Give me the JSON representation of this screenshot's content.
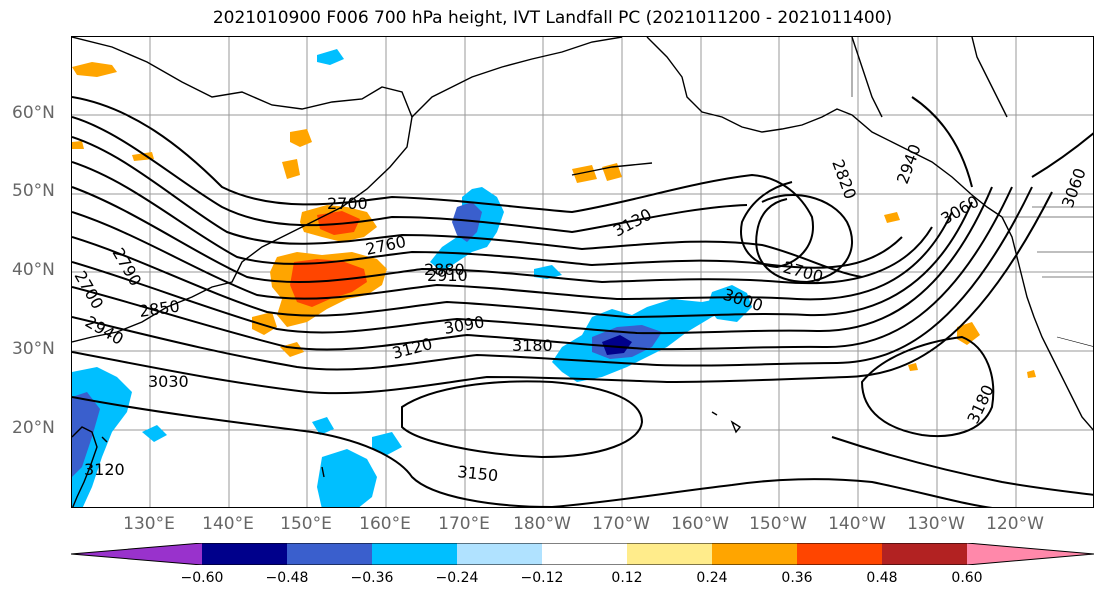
{
  "title": "2021010900 F006 700 hPa height, IVT Landfall PC (2021011200 - 2021011400)",
  "lat_labels": [
    "60°N",
    "50°N",
    "40°N",
    "30°N",
    "20°N"
  ],
  "lon_labels": [
    "130°E",
    "140°E",
    "150°E",
    "160°E",
    "170°E",
    "180°W",
    "170°W",
    "160°W",
    "150°W",
    "140°W",
    "130°W",
    "120°W"
  ],
  "contour_labels": [
    "2700",
    "2760",
    "2880",
    "2910",
    "3130",
    "2820",
    "2940",
    "3060",
    "3060",
    "2700",
    "3000",
    "2850",
    "2940",
    "3120",
    "3090",
    "3180",
    "3030",
    "3180",
    "3150",
    "3120",
    "2790",
    "2700"
  ],
  "colorbar": {
    "colors": [
      "#9932CC",
      "#00008B",
      "#3A5FCD",
      "#00BFFF",
      "#B0E2FF",
      "#FFFFFF",
      "#FFEC8B",
      "#FFA500",
      "#FF4500",
      "#B22222",
      "#FF88AA"
    ],
    "tick_labels": [
      "−0.60",
      "−0.48",
      "−0.36",
      "−0.24",
      "−0.12",
      "0.12",
      "0.24",
      "0.36",
      "0.48",
      "0.60"
    ]
  }
}
